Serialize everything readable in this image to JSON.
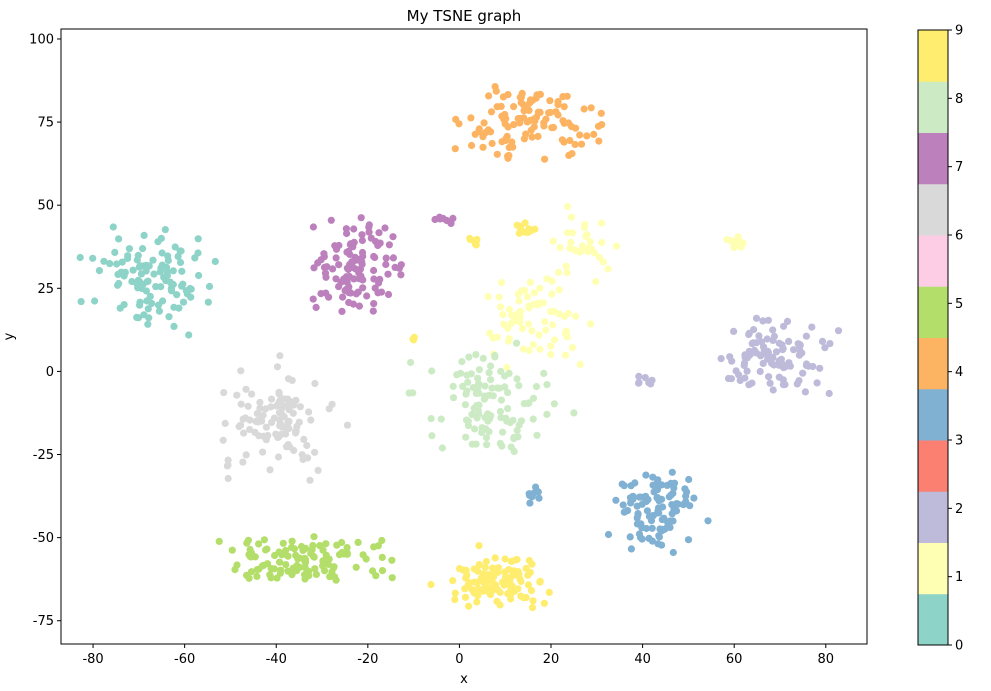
{
  "chart_data": {
    "type": "scatter",
    "title": "My TSNE graph",
    "xlabel": "x",
    "ylabel": "y",
    "xlim": [
      -87,
      89
    ],
    "ylim": [
      -82,
      103
    ],
    "xticks": [
      -80,
      -60,
      -40,
      -20,
      0,
      20,
      40,
      60,
      80
    ],
    "yticks": [
      -75,
      -50,
      -25,
      0,
      25,
      50,
      75,
      100
    ],
    "grid": false,
    "colorbar": {
      "min": 0,
      "max": 9,
      "ticks": [
        0,
        1,
        2,
        3,
        4,
        5,
        6,
        7,
        8,
        9
      ],
      "colormap": "Set3",
      "colors": [
        "#8dd3c7",
        "#ffffb3",
        "#bebada",
        "#fb8072",
        "#80b1d3",
        "#fdb462",
        "#b3de69",
        "#fccde5",
        "#d9d9d9",
        "#bc80bd",
        "#ccebc5",
        "#ffed6f"
      ]
    },
    "clusters": [
      {
        "label": 0,
        "center": [
          -67,
          28
        ],
        "spread": [
          8,
          9
        ],
        "n": 110
      },
      {
        "label": 1,
        "center": [
          17,
          15
        ],
        "spread": [
          8,
          8
        ],
        "n": 70
      },
      {
        "label": 1,
        "center": [
          28,
          38
        ],
        "spread": [
          4,
          6
        ],
        "n": 30
      },
      {
        "label": 1,
        "center": [
          60,
          39
        ],
        "spread": [
          1.5,
          1.5
        ],
        "n": 10
      },
      {
        "label": 2,
        "center": [
          68,
          4
        ],
        "spread": [
          8,
          7
        ],
        "n": 100
      },
      {
        "label": 2,
        "center": [
          40,
          -3
        ],
        "spread": [
          1.5,
          1
        ],
        "n": 8
      },
      {
        "label": 3,
        "center": [
          43,
          -42
        ],
        "spread": [
          6,
          8
        ],
        "n": 100
      },
      {
        "label": 3,
        "center": [
          16,
          -37
        ],
        "spread": [
          0.8,
          1.5
        ],
        "n": 8
      },
      {
        "label": 4,
        "center": [
          16,
          75
        ],
        "spread": [
          9,
          8
        ],
        "n": 110
      },
      {
        "label": 5,
        "center": [
          -33,
          -57
        ],
        "spread": [
          13,
          5
        ],
        "n": 110
      },
      {
        "label": 6,
        "center": [
          -40,
          -15
        ],
        "spread": [
          8,
          9
        ],
        "n": 110
      },
      {
        "label": 7,
        "center": [
          -22,
          32
        ],
        "spread": [
          6,
          9
        ],
        "n": 110
      },
      {
        "label": 7,
        "center": [
          -4,
          46
        ],
        "spread": [
          2,
          1
        ],
        "n": 8
      },
      {
        "label": 8,
        "center": [
          6,
          -10
        ],
        "spread": [
          9,
          10
        ],
        "n": 110
      },
      {
        "label": 9,
        "center": [
          8,
          -63
        ],
        "spread": [
          7,
          5
        ],
        "n": 110
      },
      {
        "label": 9,
        "center": [
          14,
          43
        ],
        "spread": [
          1.5,
          1.5
        ],
        "n": 12
      },
      {
        "label": 9,
        "center": [
          3,
          39
        ],
        "spread": [
          1.5,
          1
        ],
        "n": 8
      },
      {
        "label": 9,
        "center": [
          -10,
          10
        ],
        "spread": [
          0.5,
          0.5
        ],
        "n": 3
      }
    ]
  }
}
